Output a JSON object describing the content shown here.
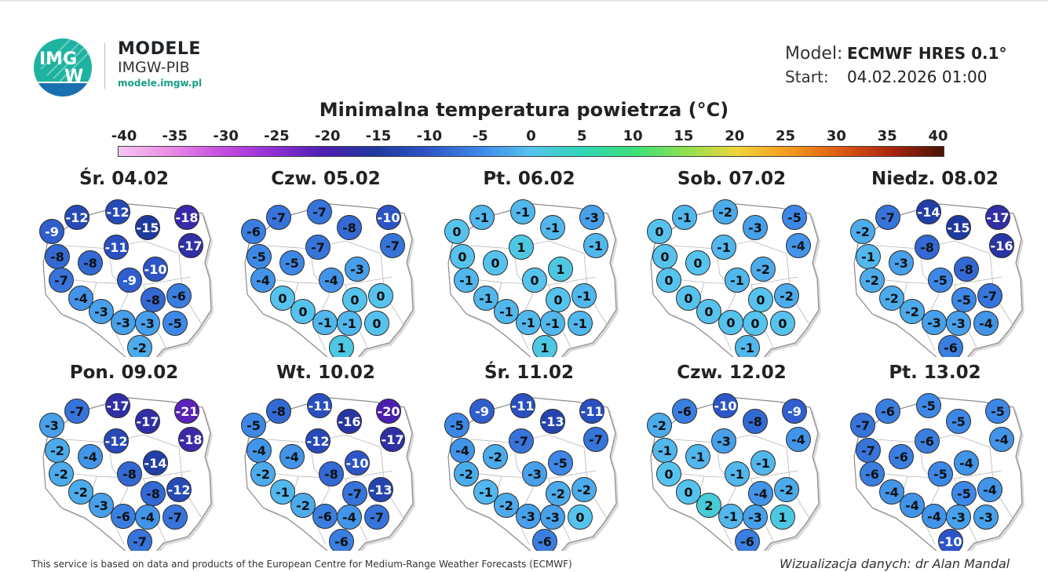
{
  "header": {
    "brand_title": "MODELE",
    "brand_subtitle": "IMGW-PIB",
    "brand_url": "modele.imgw.pl",
    "logo_text_top": "IMG",
    "logo_text_bottom": "W",
    "model_label": "Model:",
    "model_value": "ECMWF HRES 0.1°",
    "start_label": "Start:",
    "start_value": "04.02.2026 01:00",
    "title": "Minimalna temperatura powietrza (°C)"
  },
  "scale": {
    "ticks": [
      "-40",
      "-35",
      "-30",
      "-25",
      "-20",
      "-15",
      "-10",
      "-5",
      "0",
      "5",
      "10",
      "15",
      "20",
      "25",
      "30",
      "35",
      "40"
    ],
    "colors": [
      "#f5c6ee",
      "#e98ce6",
      "#c64ee0",
      "#8f2fd6",
      "#4b1fb0",
      "#1f3a9e",
      "#2d55c7",
      "#3d88e6",
      "#56c3ee",
      "#2fd6b5",
      "#3ae07a",
      "#8ee04f",
      "#f0d43a",
      "#f39a1e",
      "#de5a12",
      "#a8240f",
      "#4a1405"
    ]
  },
  "panels": [
    {
      "day": "Śr. 04.02",
      "values": [
        -9,
        -12,
        -12,
        -18,
        -15,
        -17,
        -8,
        -8,
        -11,
        -7,
        -10,
        -9,
        -4,
        -8,
        -6,
        -3,
        -3,
        -5,
        -3,
        -2
      ]
    },
    {
      "day": "Czw. 05.02",
      "values": [
        -6,
        -7,
        -7,
        -10,
        -8,
        -7,
        -5,
        -5,
        -7,
        -4,
        -3,
        -4,
        0,
        0,
        0,
        0,
        -1,
        0,
        -1,
        1
      ]
    },
    {
      "day": "Pt. 06.02",
      "values": [
        0,
        -1,
        -1,
        -3,
        -1,
        -1,
        0,
        0,
        1,
        -1,
        1,
        0,
        -1,
        0,
        -1,
        -1,
        -1,
        -1,
        -1,
        1
      ]
    },
    {
      "day": "Sob. 07.02",
      "values": [
        0,
        -1,
        -2,
        -5,
        -3,
        -4,
        0,
        0,
        -1,
        0,
        -2,
        -1,
        0,
        0,
        -2,
        0,
        0,
        0,
        0,
        -1
      ]
    },
    {
      "day": "Niedz. 08.02",
      "values": [
        -2,
        -7,
        -14,
        -17,
        -15,
        -16,
        -1,
        -3,
        -8,
        -2,
        -8,
        -5,
        -2,
        -5,
        -7,
        -2,
        -3,
        -4,
        -3,
        -6
      ]
    },
    {
      "day": "Pon. 09.02",
      "values": [
        -3,
        -7,
        -17,
        -21,
        -17,
        -18,
        -2,
        -4,
        -12,
        -2,
        -14,
        -8,
        -2,
        -8,
        -12,
        -3,
        -6,
        -7,
        -4,
        -7
      ]
    },
    {
      "day": "Wt. 10.02",
      "values": [
        -5,
        -8,
        -11,
        -20,
        -16,
        -17,
        -4,
        -4,
        -12,
        -2,
        -10,
        -8,
        -1,
        -7,
        -13,
        -2,
        -6,
        -7,
        -4,
        -6
      ]
    },
    {
      "day": "Śr. 11.02",
      "values": [
        -5,
        -9,
        -11,
        -11,
        -13,
        -7,
        -4,
        -2,
        -7,
        -2,
        -5,
        -3,
        -1,
        -2,
        -2,
        -2,
        -3,
        0,
        -3,
        -6
      ]
    },
    {
      "day": "Czw. 12.02",
      "values": [
        -2,
        -6,
        -10,
        -9,
        -8,
        -4,
        -1,
        -1,
        -3,
        0,
        -1,
        -1,
        0,
        -4,
        -2,
        2,
        -1,
        1,
        -3,
        -6
      ]
    },
    {
      "day": "Pt. 13.02",
      "values": [
        -7,
        -6,
        -5,
        -5,
        -5,
        -4,
        -7,
        -6,
        -6,
        -6,
        -4,
        -5,
        -4,
        -5,
        -4,
        -4,
        -4,
        -3,
        -3,
        -10
      ]
    }
  ],
  "footer": {
    "left": "This service is based on data and products of the European Centre for Medium-Range Weather Forecasts (ECMWF)",
    "right": "Wizualizacja danych: dr Alan Mandal"
  }
}
